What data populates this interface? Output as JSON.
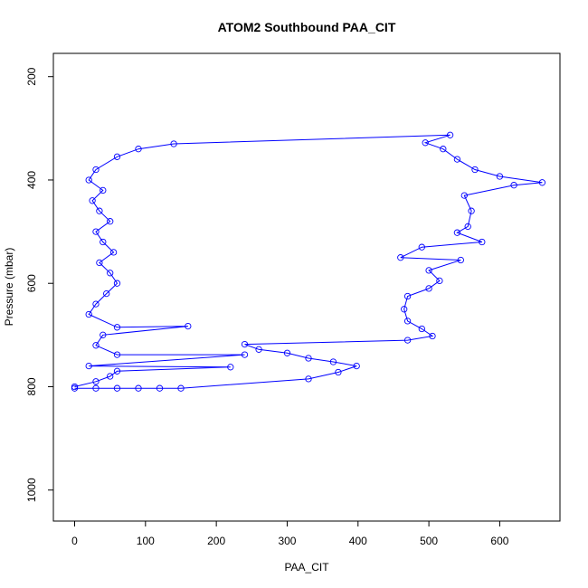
{
  "chart_data": {
    "type": "scatter",
    "title": "ATOM2 Southbound PAA_CIT",
    "xlabel": "PAA_CIT",
    "ylabel": "Pressure (mbar)",
    "xlim": [
      -30,
      685
    ],
    "ylim": [
      1060,
      155
    ],
    "y_reversed": true,
    "x_ticks": [
      0,
      100,
      200,
      300,
      400,
      500,
      600
    ],
    "y_ticks": [
      200,
      400,
      600,
      800,
      1000
    ],
    "grid": false,
    "marker": "open-circle",
    "connected_line": true,
    "series_color": "#0000ff",
    "series": [
      {
        "points": [
          [
            0,
            803
          ],
          [
            30,
            803
          ],
          [
            60,
            803
          ],
          [
            90,
            803
          ],
          [
            120,
            803
          ],
          [
            150,
            803
          ],
          [
            330,
            785
          ],
          [
            372,
            772
          ],
          [
            398,
            760
          ],
          [
            365,
            752
          ],
          [
            330,
            745
          ],
          [
            300,
            735
          ],
          [
            260,
            728
          ],
          [
            240,
            718
          ],
          [
            470,
            710
          ],
          [
            505,
            702
          ],
          [
            490,
            688
          ],
          [
            470,
            673
          ],
          [
            465,
            650
          ],
          [
            470,
            625
          ],
          [
            500,
            610
          ],
          [
            515,
            595
          ],
          [
            500,
            575
          ],
          [
            545,
            555
          ],
          [
            460,
            550
          ],
          [
            490,
            530
          ],
          [
            575,
            520
          ],
          [
            540,
            502
          ],
          [
            555,
            490
          ],
          [
            560,
            460
          ],
          [
            550,
            430
          ],
          [
            620,
            410
          ],
          [
            660,
            405
          ],
          [
            600,
            393
          ],
          [
            565,
            380
          ],
          [
            540,
            360
          ],
          [
            520,
            340
          ],
          [
            495,
            328
          ],
          [
            530,
            313
          ],
          [
            140,
            330
          ],
          [
            90,
            340
          ],
          [
            60,
            355
          ],
          [
            30,
            380
          ],
          [
            20,
            400
          ],
          [
            40,
            420
          ],
          [
            25,
            440
          ],
          [
            35,
            460
          ],
          [
            50,
            480
          ],
          [
            30,
            500
          ],
          [
            40,
            520
          ],
          [
            55,
            540
          ],
          [
            35,
            560
          ],
          [
            50,
            580
          ],
          [
            60,
            600
          ],
          [
            45,
            620
          ],
          [
            30,
            640
          ],
          [
            20,
            660
          ],
          [
            60,
            685
          ],
          [
            160,
            683
          ],
          [
            40,
            700
          ],
          [
            30,
            720
          ],
          [
            60,
            738
          ],
          [
            240,
            738
          ],
          [
            20,
            760
          ],
          [
            220,
            762
          ],
          [
            60,
            770
          ],
          [
            50,
            780
          ],
          [
            30,
            790
          ],
          [
            0,
            800
          ]
        ]
      }
    ]
  }
}
